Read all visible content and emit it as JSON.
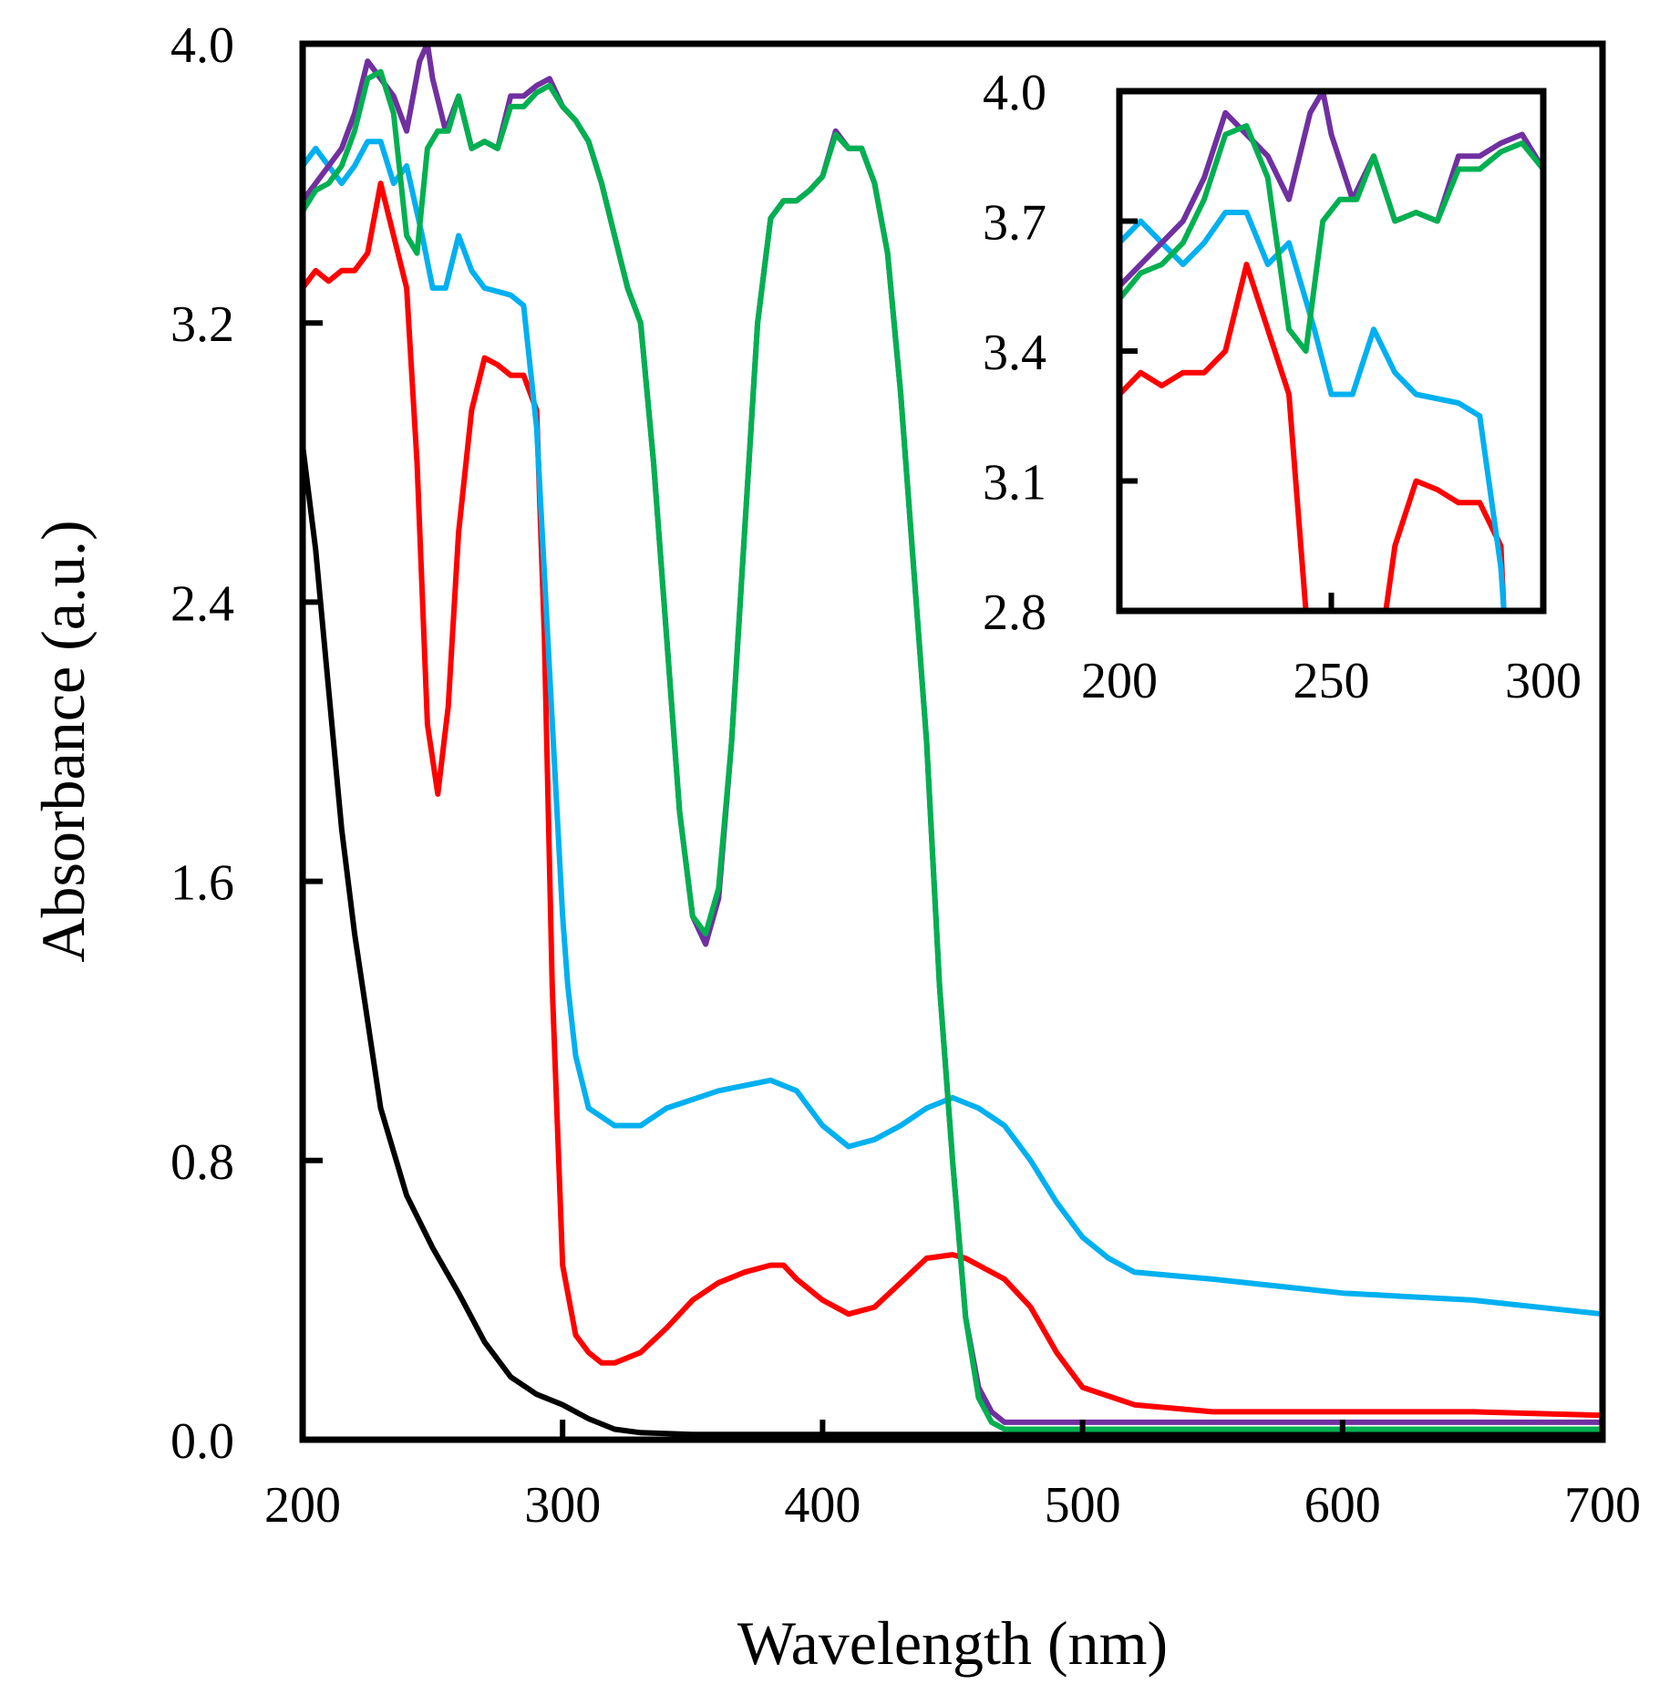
{
  "chart_data": [
    {
      "type": "line",
      "xlabel": "Wavelength (nm)",
      "ylabel": "Absorbance (a.u.)",
      "xlim": [
        200,
        700
      ],
      "ylim": [
        0,
        4
      ],
      "xticks": [
        200,
        300,
        400,
        500,
        600,
        700
      ],
      "xtick_labels": [
        "200",
        "300",
        "400",
        "500",
        "600",
        "700"
      ],
      "yticks": [
        0,
        0.8,
        1.6,
        2.4,
        3.2,
        4.0
      ],
      "ytick_labels": [
        "0.0",
        "0.8",
        "1.6",
        "2.4",
        "3.2",
        "4.0"
      ],
      "series": [
        {
          "name": "black",
          "color": "#000000",
          "x": [
            200,
            205,
            210,
            215,
            220,
            230,
            240,
            250,
            260,
            270,
            280,
            290,
            300,
            310,
            320,
            330,
            350,
            400,
            500,
            700
          ],
          "y": [
            2.85,
            2.55,
            2.15,
            1.75,
            1.45,
            0.95,
            0.7,
            0.55,
            0.42,
            0.28,
            0.18,
            0.13,
            0.1,
            0.06,
            0.03,
            0.02,
            0.015,
            0.015,
            0.015,
            0.015
          ]
        },
        {
          "name": "red",
          "color": "#ff0000",
          "x": [
            200,
            205,
            210,
            215,
            220,
            225,
            230,
            235,
            240,
            244,
            248,
            252,
            256,
            260,
            265,
            270,
            275,
            280,
            285,
            290,
            293,
            296,
            300,
            305,
            310,
            315,
            320,
            330,
            340,
            350,
            360,
            370,
            380,
            385,
            390,
            400,
            410,
            420,
            430,
            440,
            450,
            455,
            460,
            470,
            480,
            490,
            500,
            520,
            550,
            600,
            650,
            700
          ],
          "y": [
            3.3,
            3.35,
            3.32,
            3.35,
            3.35,
            3.4,
            3.6,
            3.45,
            3.3,
            2.8,
            2.05,
            1.85,
            2.1,
            2.6,
            2.95,
            3.1,
            3.08,
            3.05,
            3.05,
            2.95,
            2.3,
            1.3,
            0.5,
            0.3,
            0.25,
            0.22,
            0.22,
            0.25,
            0.32,
            0.4,
            0.45,
            0.48,
            0.5,
            0.5,
            0.46,
            0.4,
            0.36,
            0.38,
            0.45,
            0.52,
            0.53,
            0.52,
            0.5,
            0.46,
            0.38,
            0.25,
            0.15,
            0.1,
            0.08,
            0.08,
            0.08,
            0.07
          ]
        },
        {
          "name": "cyan",
          "color": "#00b0f0",
          "x": [
            200,
            205,
            210,
            215,
            220,
            225,
            230,
            235,
            240,
            243,
            246,
            250,
            255,
            260,
            265,
            270,
            280,
            285,
            290,
            295,
            300,
            302,
            305,
            310,
            320,
            330,
            340,
            360,
            380,
            390,
            400,
            410,
            420,
            430,
            440,
            450,
            460,
            470,
            480,
            490,
            500,
            510,
            520,
            550,
            600,
            650,
            700
          ],
          "y": [
            3.65,
            3.7,
            3.65,
            3.6,
            3.65,
            3.72,
            3.72,
            3.6,
            3.65,
            3.55,
            3.45,
            3.3,
            3.3,
            3.45,
            3.35,
            3.3,
            3.28,
            3.25,
            2.9,
            2.2,
            1.5,
            1.3,
            1.1,
            0.95,
            0.9,
            0.9,
            0.95,
            1.0,
            1.03,
            1.0,
            0.9,
            0.84,
            0.86,
            0.9,
            0.95,
            0.98,
            0.95,
            0.9,
            0.8,
            0.68,
            0.58,
            0.52,
            0.48,
            0.46,
            0.42,
            0.4,
            0.36
          ]
        },
        {
          "name": "purple",
          "color": "#7030a0",
          "x": [
            200,
            205,
            210,
            215,
            220,
            225,
            230,
            235,
            240,
            245,
            248,
            250,
            255,
            260,
            265,
            270,
            275,
            280,
            285,
            290,
            295,
            300,
            305,
            310,
            315,
            320,
            325,
            330,
            335,
            340,
            345,
            350,
            355,
            360,
            365,
            370,
            375,
            380,
            385,
            390,
            395,
            400,
            405,
            410,
            415,
            420,
            425,
            430,
            440,
            445,
            450,
            455,
            460,
            465,
            470,
            480,
            500,
            600,
            700
          ],
          "y": [
            3.55,
            3.6,
            3.65,
            3.7,
            3.8,
            3.95,
            3.9,
            3.85,
            3.75,
            3.95,
            4.0,
            3.9,
            3.75,
            3.85,
            3.7,
            3.72,
            3.7,
            3.85,
            3.85,
            3.88,
            3.9,
            3.82,
            3.78,
            3.72,
            3.6,
            3.45,
            3.3,
            3.2,
            2.8,
            2.3,
            1.8,
            1.5,
            1.42,
            1.55,
            2.0,
            2.6,
            3.2,
            3.5,
            3.55,
            3.55,
            3.58,
            3.62,
            3.75,
            3.7,
            3.7,
            3.6,
            3.4,
            3.0,
            2.0,
            1.3,
            0.8,
            0.35,
            0.15,
            0.08,
            0.05,
            0.05,
            0.05,
            0.05,
            0.05
          ]
        },
        {
          "name": "green",
          "color": "#00b050",
          "x": [
            200,
            205,
            210,
            215,
            220,
            225,
            230,
            235,
            240,
            244,
            248,
            252,
            256,
            260,
            265,
            270,
            275,
            280,
            285,
            290,
            295,
            300,
            305,
            310,
            315,
            320,
            325,
            330,
            335,
            340,
            345,
            350,
            355,
            360,
            365,
            370,
            375,
            380,
            385,
            390,
            395,
            400,
            405,
            410,
            415,
            420,
            425,
            430,
            440,
            445,
            450,
            455,
            460,
            465,
            470,
            480,
            500,
            600,
            700
          ],
          "y": [
            3.52,
            3.58,
            3.6,
            3.65,
            3.75,
            3.9,
            3.92,
            3.8,
            3.45,
            3.4,
            3.7,
            3.75,
            3.75,
            3.85,
            3.7,
            3.72,
            3.7,
            3.82,
            3.82,
            3.86,
            3.88,
            3.82,
            3.78,
            3.72,
            3.6,
            3.45,
            3.3,
            3.2,
            2.8,
            2.3,
            1.8,
            1.5,
            1.45,
            1.58,
            2.0,
            2.6,
            3.2,
            3.5,
            3.55,
            3.55,
            3.58,
            3.62,
            3.74,
            3.7,
            3.7,
            3.6,
            3.4,
            3.0,
            2.0,
            1.3,
            0.8,
            0.35,
            0.12,
            0.05,
            0.03,
            0.03,
            0.03,
            0.03,
            0.03
          ]
        }
      ]
    },
    {
      "type": "line",
      "role": "inset",
      "xlim": [
        200,
        300
      ],
      "ylim": [
        2.8,
        4.0
      ],
      "xticks": [
        200,
        250,
        300
      ],
      "xtick_labels": [
        "200",
        "250",
        "300"
      ],
      "yticks": [
        2.8,
        3.1,
        3.4,
        3.7,
        4.0
      ],
      "ytick_labels": [
        "2.8",
        "3.1",
        "3.4",
        "3.7",
        "4.0"
      ]
    }
  ]
}
